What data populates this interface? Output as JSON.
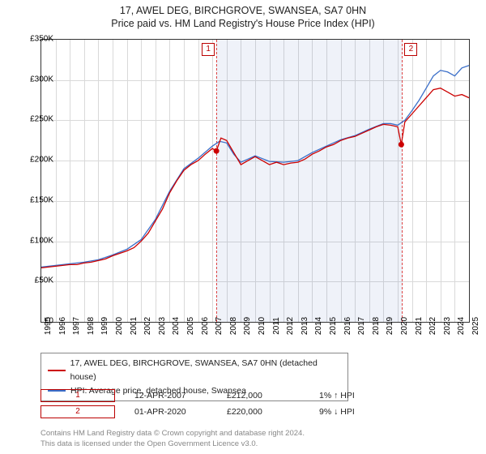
{
  "title_line1": "17, AWEL DEG, BIRCHGROVE, SWANSEA, SA7 0HN",
  "title_line2": "Price paid vs. HM Land Registry's House Price Index (HPI)",
  "chart": {
    "type": "line",
    "ylim": [
      0,
      350000
    ],
    "ytick_step": 50000,
    "ytick_labels": [
      "£0",
      "£50K",
      "£100K",
      "£150K",
      "£200K",
      "£250K",
      "£300K",
      "£350K"
    ],
    "xlim": [
      1995,
      2025
    ],
    "xticks": [
      1995,
      1996,
      1997,
      1998,
      1999,
      2000,
      2001,
      2002,
      2003,
      2004,
      2005,
      2006,
      2007,
      2008,
      2009,
      2010,
      2011,
      2012,
      2013,
      2014,
      2015,
      2016,
      2017,
      2018,
      2019,
      2020,
      2021,
      2022,
      2023,
      2024,
      2025
    ],
    "grid_color": "#d9d9d9",
    "background_color": "#ffffff",
    "shade_start": 2007.28,
    "shade_end": 2020.25,
    "marker1_label": "1",
    "marker2_label": "2",
    "series_red": {
      "color": "#cc0000",
      "label": "17, AWEL DEG, BIRCHGROVE, SWANSEA, SA7 0HN (detached house)",
      "points": [
        [
          1995,
          67000
        ],
        [
          1995.5,
          68000
        ],
        [
          1996,
          69000
        ],
        [
          1996.5,
          70000
        ],
        [
          1997,
          71000
        ],
        [
          1997.5,
          71000
        ],
        [
          1998,
          73000
        ],
        [
          1998.5,
          74000
        ],
        [
          1999,
          76000
        ],
        [
          1999.5,
          78000
        ],
        [
          2000,
          82000
        ],
        [
          2000.5,
          85000
        ],
        [
          2001,
          88000
        ],
        [
          2001.5,
          92000
        ],
        [
          2002,
          100000
        ],
        [
          2002.5,
          110000
        ],
        [
          2003,
          125000
        ],
        [
          2003.5,
          140000
        ],
        [
          2004,
          160000
        ],
        [
          2004.5,
          175000
        ],
        [
          2005,
          188000
        ],
        [
          2005.5,
          195000
        ],
        [
          2006,
          200000
        ],
        [
          2006.5,
          208000
        ],
        [
          2007,
          215000
        ],
        [
          2007.28,
          212000
        ],
        [
          2007.6,
          228000
        ],
        [
          2008,
          225000
        ],
        [
          2008.5,
          210000
        ],
        [
          2009,
          195000
        ],
        [
          2009.5,
          200000
        ],
        [
          2010,
          205000
        ],
        [
          2010.5,
          200000
        ],
        [
          2011,
          195000
        ],
        [
          2011.5,
          198000
        ],
        [
          2012,
          195000
        ],
        [
          2012.5,
          197000
        ],
        [
          2013,
          198000
        ],
        [
          2013.5,
          202000
        ],
        [
          2014,
          208000
        ],
        [
          2014.5,
          212000
        ],
        [
          2015,
          217000
        ],
        [
          2015.5,
          220000
        ],
        [
          2016,
          225000
        ],
        [
          2016.5,
          228000
        ],
        [
          2017,
          230000
        ],
        [
          2017.5,
          234000
        ],
        [
          2018,
          238000
        ],
        [
          2018.5,
          242000
        ],
        [
          2019,
          245000
        ],
        [
          2019.5,
          244000
        ],
        [
          2020,
          242000
        ],
        [
          2020.25,
          220000
        ],
        [
          2020.5,
          248000
        ],
        [
          2021,
          258000
        ],
        [
          2021.5,
          268000
        ],
        [
          2022,
          278000
        ],
        [
          2022.5,
          288000
        ],
        [
          2023,
          290000
        ],
        [
          2023.5,
          285000
        ],
        [
          2024,
          280000
        ],
        [
          2024.5,
          282000
        ],
        [
          2025,
          278000
        ]
      ]
    },
    "series_blue": {
      "color": "#3b6fc9",
      "label": "HPI: Average price, detached house, Swansea",
      "points": [
        [
          1995,
          68000
        ],
        [
          1996,
          70000
        ],
        [
          1997,
          72000
        ],
        [
          1998,
          74000
        ],
        [
          1999,
          77000
        ],
        [
          2000,
          83000
        ],
        [
          2001,
          90000
        ],
        [
          2002,
          102000
        ],
        [
          2003,
          127000
        ],
        [
          2004,
          162000
        ],
        [
          2005,
          190000
        ],
        [
          2006,
          203000
        ],
        [
          2007,
          218000
        ],
        [
          2007.5,
          224000
        ],
        [
          2008,
          222000
        ],
        [
          2008.5,
          208000
        ],
        [
          2009,
          198000
        ],
        [
          2009.5,
          202000
        ],
        [
          2010,
          206000
        ],
        [
          2011,
          199000
        ],
        [
          2012,
          198000
        ],
        [
          2013,
          200000
        ],
        [
          2014,
          210000
        ],
        [
          2015,
          218000
        ],
        [
          2016,
          226000
        ],
        [
          2017,
          231000
        ],
        [
          2018,
          239000
        ],
        [
          2019,
          246000
        ],
        [
          2019.5,
          246000
        ],
        [
          2020,
          244000
        ],
        [
          2020.5,
          250000
        ],
        [
          2021,
          262000
        ],
        [
          2021.5,
          275000
        ],
        [
          2022,
          290000
        ],
        [
          2022.5,
          305000
        ],
        [
          2023,
          312000
        ],
        [
          2023.5,
          310000
        ],
        [
          2024,
          305000
        ],
        [
          2024.5,
          315000
        ],
        [
          2025,
          318000
        ]
      ]
    },
    "sale_points": [
      {
        "x": 2007.28,
        "y": 212000,
        "color": "#cc0000"
      },
      {
        "x": 2020.25,
        "y": 220000,
        "color": "#cc0000"
      }
    ]
  },
  "legend": {
    "row1_color": "#cc0000",
    "row2_color": "#3b6fc9"
  },
  "transactions": [
    {
      "n": "1",
      "date": "12-APR-2007",
      "price": "£212,000",
      "delta": "1% ↑ HPI"
    },
    {
      "n": "2",
      "date": "01-APR-2020",
      "price": "£220,000",
      "delta": "9% ↓ HPI"
    }
  ],
  "footer_line1": "Contains HM Land Registry data © Crown copyright and database right 2024.",
  "footer_line2": "This data is licensed under the Open Government Licence v3.0."
}
